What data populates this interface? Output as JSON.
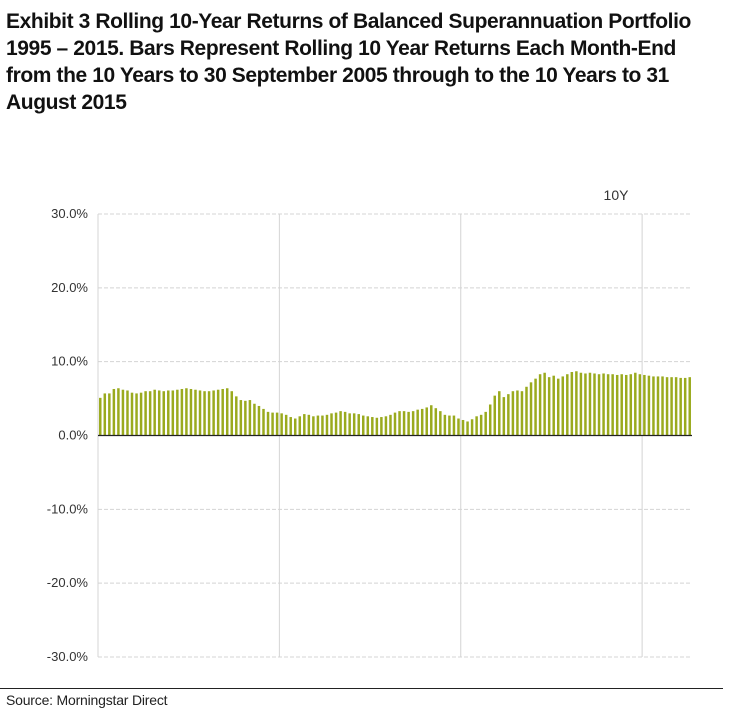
{
  "header": {
    "exhibit_label": "Exhibit 3",
    "title_text": " Rolling 10-Year Returns of Balanced Superannuation Portfolio 1995 – 2015. Bars Represent Rolling 10 Year Returns Each Month-End from the 10 Years to 30 September 2005 through to the 10 Years to 31 August 2015"
  },
  "footer": {
    "source": "Source: Morningstar Direct"
  },
  "chart_data": {
    "type": "bar",
    "title": "",
    "xlabel": "",
    "ylabel": "",
    "ylim": [
      -0.3,
      0.3
    ],
    "y_ticks": [
      {
        "value": 0.3,
        "label": "30.0%"
      },
      {
        "value": 0.2,
        "label": "20.0%"
      },
      {
        "value": 0.1,
        "label": "10.0%"
      },
      {
        "value": 0.0,
        "label": "0.0%"
      },
      {
        "value": -0.1,
        "label": "-10.0%"
      },
      {
        "value": -0.2,
        "label": "-20.0%"
      },
      {
        "value": -0.3,
        "label": "-30.0%"
      }
    ],
    "grid": true,
    "vertical_gridlines_after_bar": [
      40,
      80,
      120
    ],
    "legend_position": "top-right",
    "bar_color": "#9aaa1e",
    "series": [
      {
        "name": "10Y",
        "values": [
          0.051,
          0.057,
          0.057,
          0.063,
          0.064,
          0.062,
          0.061,
          0.058,
          0.057,
          0.058,
          0.06,
          0.06,
          0.062,
          0.061,
          0.06,
          0.061,
          0.061,
          0.062,
          0.063,
          0.064,
          0.063,
          0.062,
          0.061,
          0.06,
          0.06,
          0.061,
          0.062,
          0.063,
          0.064,
          0.06,
          0.053,
          0.048,
          0.047,
          0.048,
          0.043,
          0.04,
          0.036,
          0.032,
          0.031,
          0.031,
          0.03,
          0.028,
          0.025,
          0.023,
          0.026,
          0.029,
          0.028,
          0.026,
          0.027,
          0.027,
          0.028,
          0.03,
          0.031,
          0.033,
          0.032,
          0.03,
          0.03,
          0.029,
          0.027,
          0.026,
          0.025,
          0.024,
          0.025,
          0.026,
          0.028,
          0.031,
          0.033,
          0.033,
          0.032,
          0.033,
          0.035,
          0.036,
          0.038,
          0.041,
          0.037,
          0.033,
          0.028,
          0.027,
          0.027,
          0.023,
          0.021,
          0.019,
          0.022,
          0.026,
          0.028,
          0.032,
          0.042,
          0.054,
          0.06,
          0.052,
          0.056,
          0.06,
          0.061,
          0.06,
          0.066,
          0.072,
          0.077,
          0.083,
          0.085,
          0.079,
          0.081,
          0.077,
          0.08,
          0.083,
          0.086,
          0.087,
          0.085,
          0.084,
          0.085,
          0.084,
          0.083,
          0.084,
          0.083,
          0.083,
          0.082,
          0.083,
          0.082,
          0.083,
          0.085,
          0.083,
          0.082,
          0.081,
          0.08,
          0.08,
          0.08,
          0.079,
          0.079,
          0.079,
          0.078,
          0.078,
          0.079
        ]
      }
    ]
  }
}
